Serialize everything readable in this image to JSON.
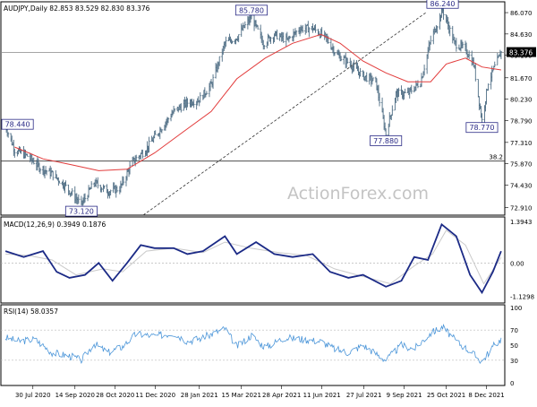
{
  "price_panel": {
    "header": "AUDJPY,Daily  82.853 83.529 82.830 83.376",
    "last_price_label": "83.376",
    "fib_label": "38.2",
    "watermark": "ActionForex.com",
    "annotations": [
      {
        "text": "85.780",
        "date": "2021-03-26",
        "value": 85.78
      },
      {
        "text": "86.240",
        "date": "2021-10-21",
        "value": 86.24
      },
      {
        "text": "78.440",
        "date": "2020-06-30",
        "value": 78.44
      },
      {
        "text": "73.120",
        "date": "2020-09-21",
        "value": 73.12
      },
      {
        "text": "77.880",
        "date": "2021-08-20",
        "value": 77.88
      },
      {
        "text": "78.770",
        "date": "2021-12-03",
        "value": 78.77
      }
    ]
  },
  "macd_panel": {
    "header": "MACD(12,26,9) 0.3949 0.1876",
    "ticks": [
      "1.3943",
      "0.00",
      "-1.1298"
    ]
  },
  "rsi_panel": {
    "header": "RSI(14) 58.0357",
    "ticks": [
      "100",
      "70",
      "50",
      "30",
      "0"
    ]
  },
  "x_axis_labels": [
    "30 Jul 2020",
    "14 Sep 2020",
    "28 Oct 2020",
    "11 Dec 2020",
    "28 Jan 2021",
    "15 Mar 2021",
    "28 Apr 2021",
    "11 Jun 2021",
    "27 Jul 2021",
    "9 Sep 2021",
    "25 Oct 2021",
    "8 Dec 2021"
  ],
  "colors": {
    "candles": "#4e6d84",
    "ma": "#e23b3b",
    "macd": "#1b2a86",
    "signal": "#c9c9c9",
    "rsi": "#4c96d9",
    "labels": "#2a2a86"
  },
  "chart_data": [
    {
      "type": "line",
      "title": "AUDJPY,Daily",
      "x_type": "date",
      "yticks": [
        "86.070",
        "84.630",
        "83.190",
        "81.670",
        "80.230",
        "78.790",
        "77.310",
        "75.870",
        "74.430",
        "72.910"
      ],
      "ylim": [
        72.4,
        86.8
      ],
      "series": [
        {
          "values": [
            [
              "2020-06-30",
              78.44
            ],
            [
              "2020-07-10",
              76.8
            ],
            [
              "2020-07-24",
              76.4
            ],
            [
              "2020-08-07",
              75.6
            ],
            [
              "2020-08-20",
              75.2
            ],
            [
              "2020-09-03",
              74.4
            ],
            [
              "2020-09-21",
              73.12
            ],
            [
              "2020-10-05",
              74.6
            ],
            [
              "2020-10-20",
              74.0
            ],
            [
              "2020-11-02",
              74.2
            ],
            [
              "2020-11-16",
              76.0
            ],
            [
              "2020-11-30",
              76.8
            ],
            [
              "2020-12-14",
              78.0
            ],
            [
              "2020-12-31",
              79.4
            ],
            [
              "2021-01-15",
              80.0
            ],
            [
              "2021-01-28",
              80.2
            ],
            [
              "2021-02-10",
              81.2
            ],
            [
              "2021-02-25",
              84.0
            ],
            [
              "2021-03-10",
              84.4
            ],
            [
              "2021-03-26",
              85.78
            ],
            [
              "2021-04-08",
              84.0
            ],
            [
              "2021-04-20",
              84.6
            ],
            [
              "2021-05-04",
              84.2
            ],
            [
              "2021-05-18",
              85.0
            ],
            [
              "2021-06-01",
              85.0
            ],
            [
              "2021-06-15",
              84.4
            ],
            [
              "2021-06-28",
              83.2
            ],
            [
              "2021-07-12",
              82.6
            ],
            [
              "2021-07-26",
              81.8
            ],
            [
              "2021-08-09",
              81.4
            ],
            [
              "2021-08-20",
              77.88
            ],
            [
              "2021-08-31",
              80.6
            ],
            [
              "2021-09-13",
              80.6
            ],
            [
              "2021-09-27",
              81.4
            ],
            [
              "2021-10-08",
              84.2
            ],
            [
              "2021-10-21",
              86.24
            ],
            [
              "2021-11-03",
              84.0
            ],
            [
              "2021-11-15",
              83.6
            ],
            [
              "2021-11-24",
              82.6
            ],
            [
              "2021-12-03",
              78.77
            ],
            [
              "2021-12-10",
              81.4
            ],
            [
              "2021-12-17",
              82.4
            ],
            [
              "2021-12-24",
              83.376
            ]
          ]
        },
        {
          "values": [
            [
              "2020-07-10",
              77.0
            ],
            [
              "2020-08-10",
              76.2
            ],
            [
              "2020-09-10",
              75.8
            ],
            [
              "2020-10-10",
              75.4
            ],
            [
              "2020-11-10",
              75.5
            ],
            [
              "2020-12-10",
              76.6
            ],
            [
              "2021-01-10",
              78.0
            ],
            [
              "2021-02-10",
              79.4
            ],
            [
              "2021-03-10",
              81.6
            ],
            [
              "2021-04-10",
              83.0
            ],
            [
              "2021-05-10",
              84.0
            ],
            [
              "2021-06-10",
              84.6
            ],
            [
              "2021-07-01",
              84.0
            ],
            [
              "2021-07-26",
              82.8
            ],
            [
              "2021-08-20",
              82.0
            ],
            [
              "2021-09-13",
              81.4
            ],
            [
              "2021-10-08",
              81.4
            ],
            [
              "2021-10-25",
              82.6
            ],
            [
              "2021-11-15",
              83.0
            ],
            [
              "2021-12-03",
              82.4
            ],
            [
              "2021-12-24",
              82.2
            ]
          ]
        }
      ]
    },
    {
      "type": "line",
      "title": "MACD(12,26,9)",
      "x_type": "date",
      "ylim": [
        -1.35,
        1.55
      ],
      "series": [
        {
          "values": [
            [
              "2020-06-30",
              0.4
            ],
            [
              "2020-07-20",
              0.2
            ],
            [
              "2020-08-10",
              0.4
            ],
            [
              "2020-08-25",
              -0.3
            ],
            [
              "2020-09-08",
              -0.5
            ],
            [
              "2020-09-25",
              -0.4
            ],
            [
              "2020-10-10",
              0.0
            ],
            [
              "2020-10-25",
              -0.6
            ],
            [
              "2020-11-10",
              0.0
            ],
            [
              "2020-11-25",
              0.6
            ],
            [
              "2020-12-10",
              0.5
            ],
            [
              "2020-12-31",
              0.5
            ],
            [
              "2021-01-15",
              0.3
            ],
            [
              "2021-02-01",
              0.4
            ],
            [
              "2021-02-25",
              0.9
            ],
            [
              "2021-03-10",
              0.3
            ],
            [
              "2021-03-31",
              0.7
            ],
            [
              "2021-04-20",
              0.3
            ],
            [
              "2021-05-10",
              0.2
            ],
            [
              "2021-06-01",
              0.3
            ],
            [
              "2021-06-20",
              -0.3
            ],
            [
              "2021-07-10",
              -0.5
            ],
            [
              "2021-07-26",
              -0.4
            ],
            [
              "2021-08-20",
              -0.8
            ],
            [
              "2021-09-06",
              -0.6
            ],
            [
              "2021-09-20",
              0.2
            ],
            [
              "2021-10-05",
              0.1
            ],
            [
              "2021-10-20",
              1.3
            ],
            [
              "2021-11-05",
              0.9
            ],
            [
              "2021-11-20",
              -0.4
            ],
            [
              "2021-12-03",
              -1.0
            ],
            [
              "2021-12-15",
              -0.3
            ],
            [
              "2021-12-24",
              0.3949
            ]
          ]
        },
        {
          "values": [
            [
              "2020-06-30",
              0.3
            ],
            [
              "2020-07-25",
              0.25
            ],
            [
              "2020-08-20",
              0.1
            ],
            [
              "2020-09-15",
              -0.4
            ],
            [
              "2020-10-15",
              -0.2
            ],
            [
              "2020-11-05",
              -0.3
            ],
            [
              "2020-12-01",
              0.4
            ],
            [
              "2020-12-31",
              0.5
            ],
            [
              "2021-02-01",
              0.35
            ],
            [
              "2021-02-25",
              0.7
            ],
            [
              "2021-03-25",
              0.5
            ],
            [
              "2021-04-25",
              0.35
            ],
            [
              "2021-05-25",
              0.25
            ],
            [
              "2021-06-25",
              -0.2
            ],
            [
              "2021-07-25",
              -0.45
            ],
            [
              "2021-08-25",
              -0.7
            ],
            [
              "2021-09-20",
              -0.1
            ],
            [
              "2021-10-10",
              0.3
            ],
            [
              "2021-10-25",
              1.1
            ],
            [
              "2021-11-15",
              0.6
            ],
            [
              "2021-12-05",
              -0.7
            ],
            [
              "2021-12-24",
              0.1876
            ]
          ]
        }
      ]
    },
    {
      "type": "line",
      "title": "RSI(14)",
      "x_type": "date",
      "ylim": [
        0,
        100
      ],
      "series": [
        {
          "values": [
            [
              "2020-06-30",
              60
            ],
            [
              "2020-07-15",
              55
            ],
            [
              "2020-08-01",
              58
            ],
            [
              "2020-08-20",
              40
            ],
            [
              "2020-09-10",
              35
            ],
            [
              "2020-09-21",
              30
            ],
            [
              "2020-10-05",
              52
            ],
            [
              "2020-10-20",
              40
            ],
            [
              "2020-11-05",
              48
            ],
            [
              "2020-11-20",
              65
            ],
            [
              "2020-12-10",
              62
            ],
            [
              "2020-12-31",
              66
            ],
            [
              "2021-01-15",
              55
            ],
            [
              "2021-02-01",
              60
            ],
            [
              "2021-02-25",
              72
            ],
            [
              "2021-03-10",
              48
            ],
            [
              "2021-03-26",
              63
            ],
            [
              "2021-04-10",
              47
            ],
            [
              "2021-05-01",
              60
            ],
            [
              "2021-05-20",
              58
            ],
            [
              "2021-06-10",
              55
            ],
            [
              "2021-06-25",
              45
            ],
            [
              "2021-07-10",
              40
            ],
            [
              "2021-07-26",
              50
            ],
            [
              "2021-08-20",
              30
            ],
            [
              "2021-09-06",
              50
            ],
            [
              "2021-09-20",
              45
            ],
            [
              "2021-10-08",
              66
            ],
            [
              "2021-10-21",
              74
            ],
            [
              "2021-11-05",
              55
            ],
            [
              "2021-11-20",
              42
            ],
            [
              "2021-12-03",
              28
            ],
            [
              "2021-12-15",
              48
            ],
            [
              "2021-12-24",
              58.0357
            ]
          ]
        }
      ]
    }
  ]
}
